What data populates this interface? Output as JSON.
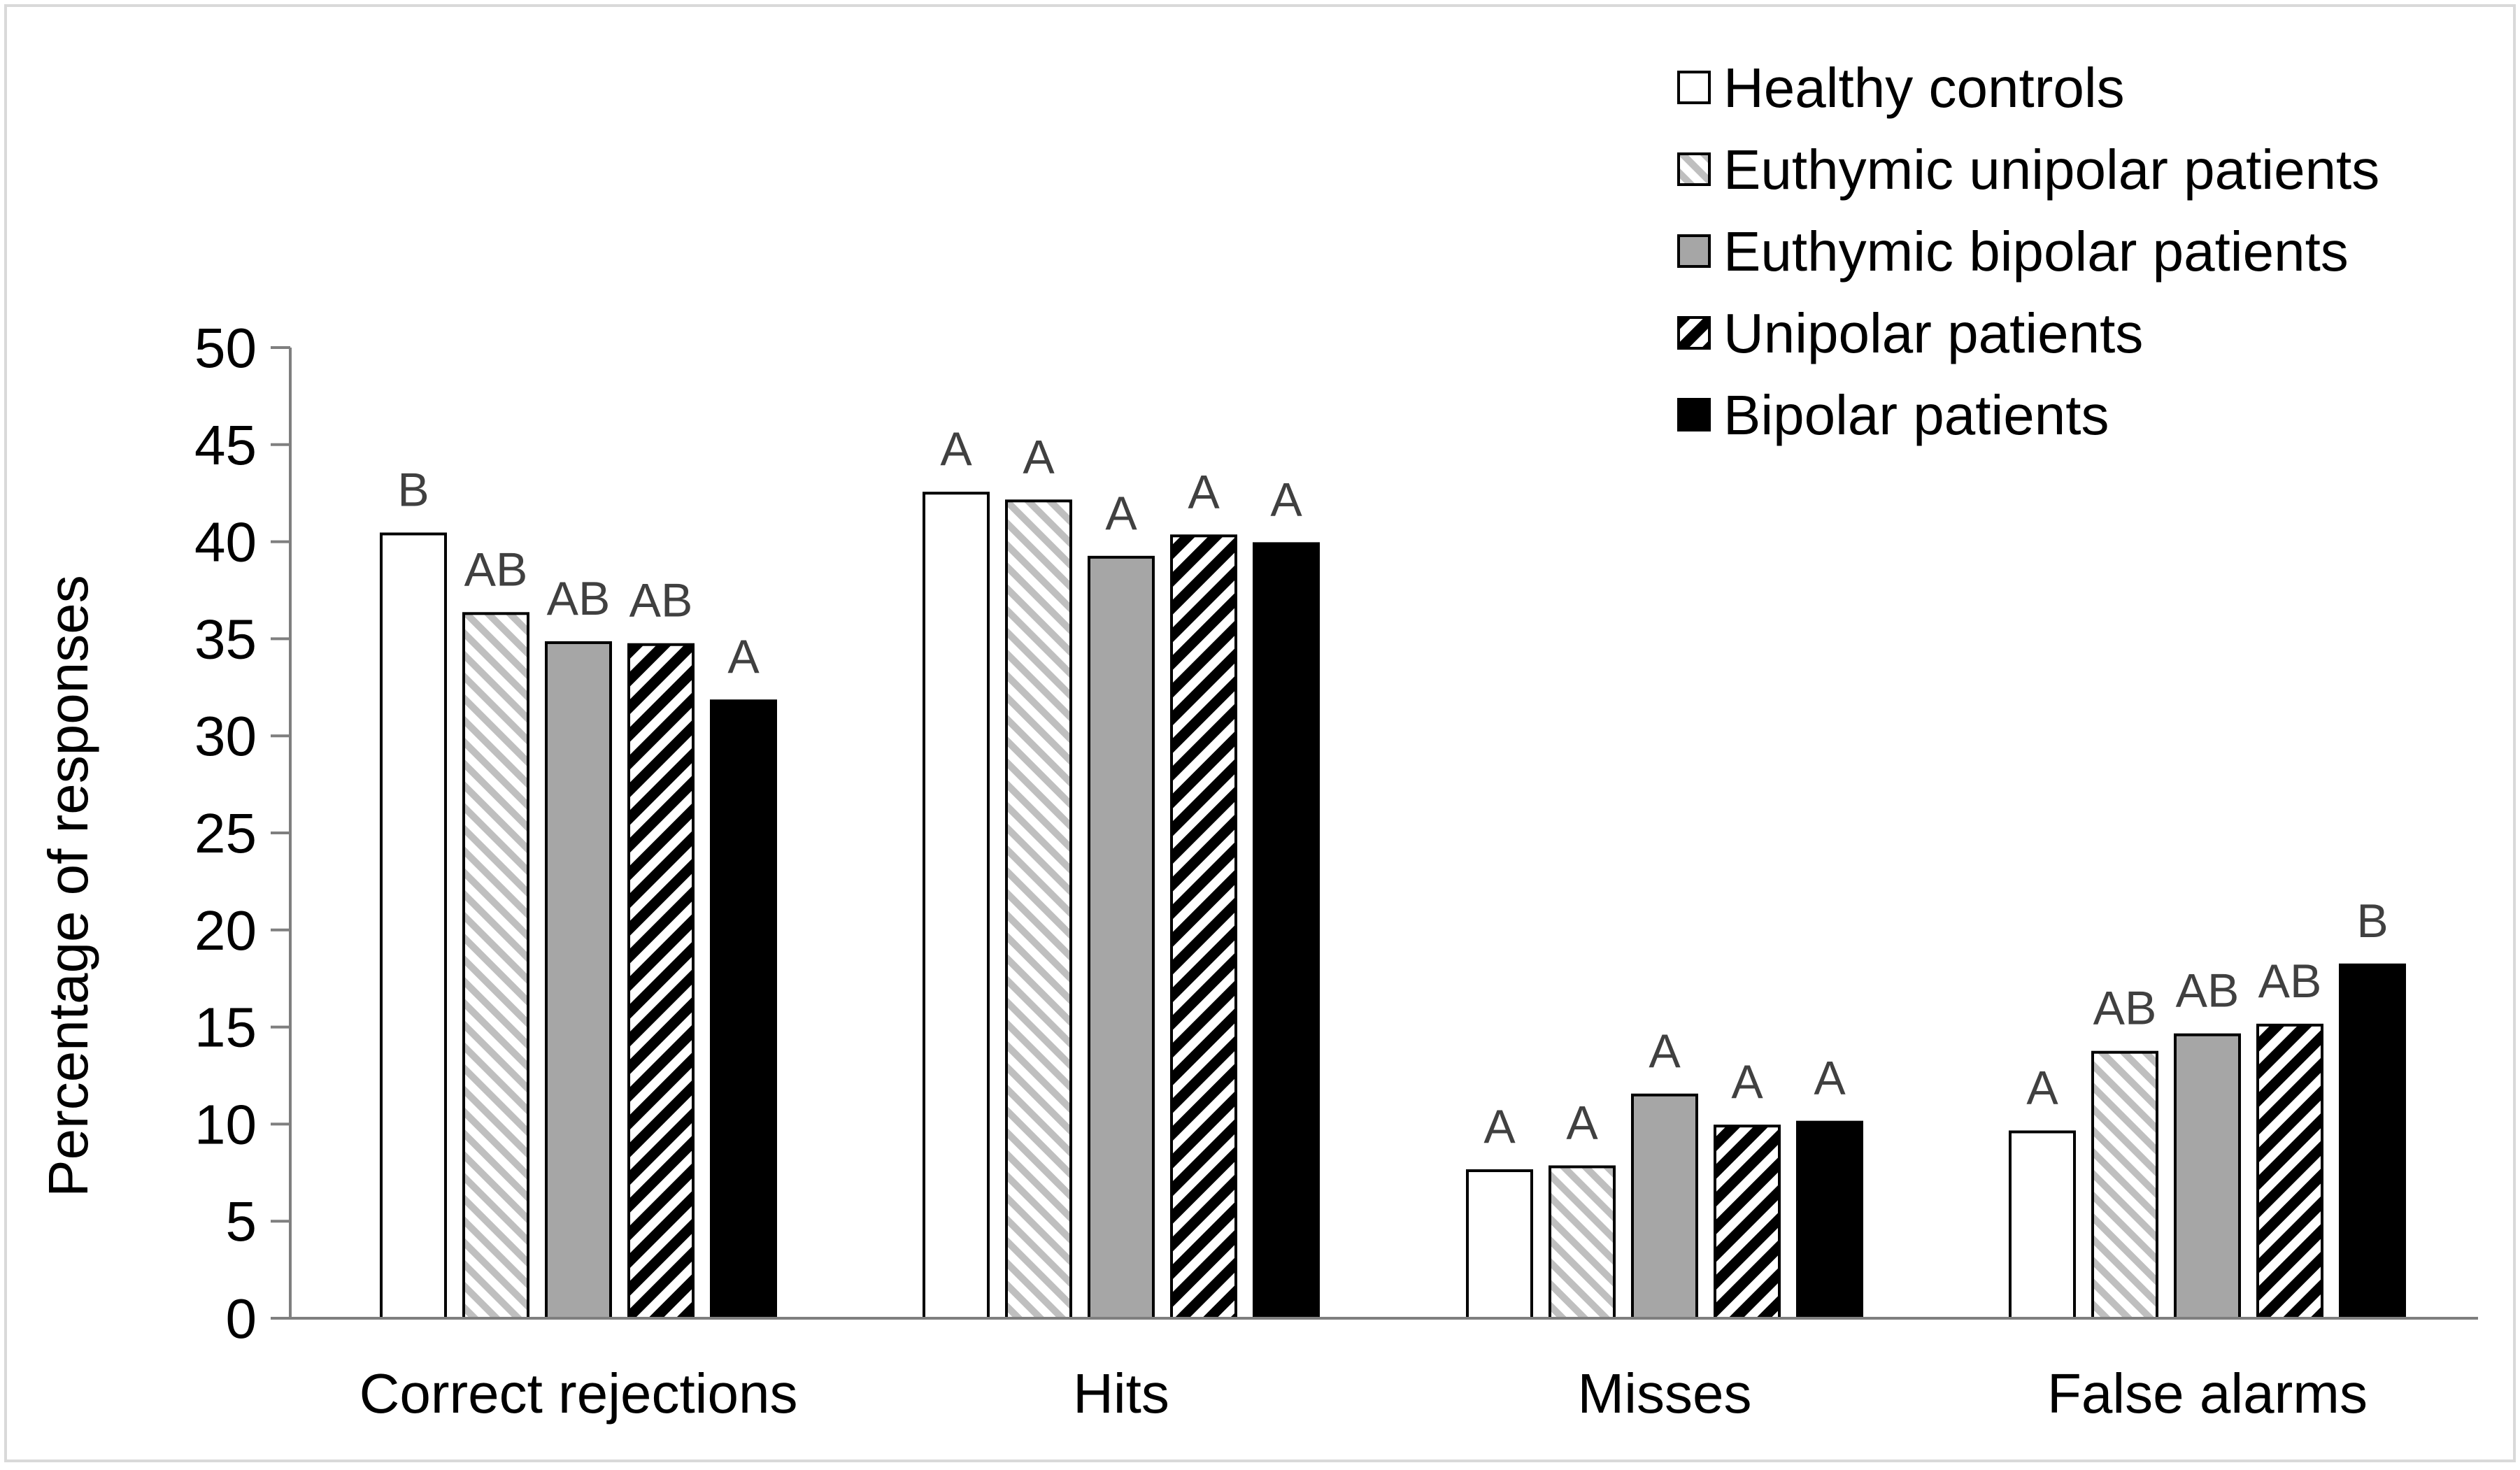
{
  "chart_data": {
    "type": "bar",
    "title": "",
    "xlabel": "",
    "ylabel": "Percentage of responses",
    "ylim": [
      0,
      50
    ],
    "yticks": [
      0,
      5,
      10,
      15,
      20,
      25,
      30,
      35,
      40,
      45,
      50
    ],
    "grid": false,
    "legend_position": "top-right",
    "categories": [
      "Correct rejections",
      "Hits",
      "Misses",
      "False alarms"
    ],
    "series": [
      {
        "name": "Healthy controls",
        "pattern": "solid",
        "fill": "#ffffff",
        "values": [
          40.4,
          42.5,
          7.6,
          9.6
        ],
        "labels": [
          "B",
          "A",
          "A",
          "A"
        ]
      },
      {
        "name": "Euthymic unipolar patients",
        "pattern": "light-diagonal",
        "fill": "#bfbfbf",
        "values": [
          36.3,
          42.1,
          7.8,
          13.7
        ],
        "labels": [
          "AB",
          "A",
          "A",
          "AB"
        ]
      },
      {
        "name": "Euthymic bipolar patients",
        "pattern": "solid",
        "fill": "#a6a6a6",
        "values": [
          34.8,
          39.2,
          11.5,
          14.6
        ],
        "labels": [
          "AB",
          "A",
          "A",
          "AB"
        ]
      },
      {
        "name": "Unipolar patients",
        "pattern": "dark-diagonal",
        "fill": "#000000",
        "values": [
          34.7,
          40.3,
          9.9,
          15.1
        ],
        "labels": [
          "AB",
          "A",
          "A",
          "AB"
        ]
      },
      {
        "name": "Bipolar patients",
        "pattern": "solid",
        "fill": "#000000",
        "values": [
          31.8,
          39.9,
          10.1,
          18.2
        ],
        "labels": [
          "A",
          "A",
          "A",
          "B"
        ]
      }
    ]
  }
}
